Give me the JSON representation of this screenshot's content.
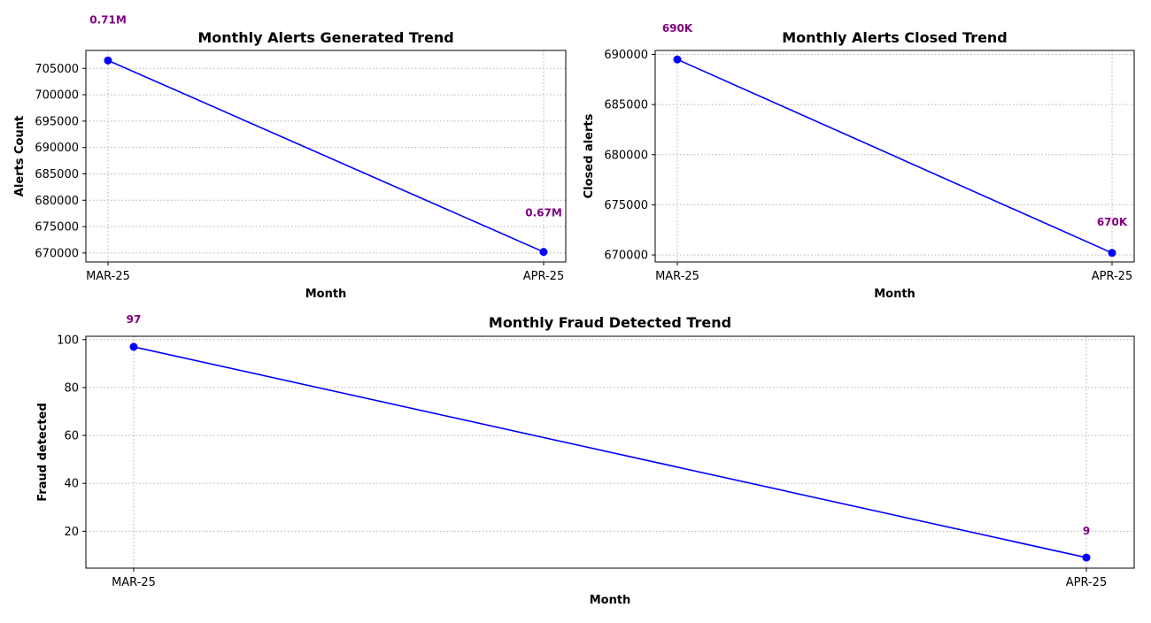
{
  "colors": {
    "line": "#0000ff",
    "marker": "#0000ff",
    "label": "#800080",
    "grid": "#b0b0b0"
  },
  "chart_data": [
    {
      "type": "line",
      "title": "Monthly Alerts Generated Trend",
      "xlabel": "Month",
      "ylabel": "Alerts Count",
      "categories": [
        "MAR-25",
        "APR-25"
      ],
      "values": [
        706500,
        670200
      ],
      "data_labels": [
        "0.71M",
        "0.67M"
      ],
      "yticks": [
        670000,
        675000,
        680000,
        685000,
        690000,
        695000,
        700000,
        705000
      ],
      "ytick_labels": [
        "670000",
        "675000",
        "680000",
        "685000",
        "690000",
        "695000",
        "700000",
        "705000"
      ],
      "ylim": [
        668300,
        708400
      ],
      "grid": true
    },
    {
      "type": "line",
      "title": "Monthly Alerts Closed Trend",
      "xlabel": "Month",
      "ylabel": "Closed alerts",
      "categories": [
        "MAR-25",
        "APR-25"
      ],
      "values": [
        689500,
        670200
      ],
      "data_labels": [
        "690K",
        "670K"
      ],
      "yticks": [
        670000,
        675000,
        680000,
        685000,
        690000
      ],
      "ytick_labels": [
        "670000",
        "675000",
        "680000",
        "685000",
        "690000"
      ],
      "ylim": [
        669300,
        690400
      ],
      "grid": true
    },
    {
      "type": "line",
      "title": "Monthly Fraud Detected Trend",
      "xlabel": "Month",
      "ylabel": "Fraud detected",
      "categories": [
        "MAR-25",
        "APR-25"
      ],
      "values": [
        97,
        9
      ],
      "data_labels": [
        "97",
        "9"
      ],
      "yticks": [
        20,
        40,
        60,
        80,
        100
      ],
      "ytick_labels": [
        "20",
        "40",
        "60",
        "80",
        "100"
      ],
      "ylim": [
        4.6,
        101.4
      ],
      "grid": true
    }
  ]
}
